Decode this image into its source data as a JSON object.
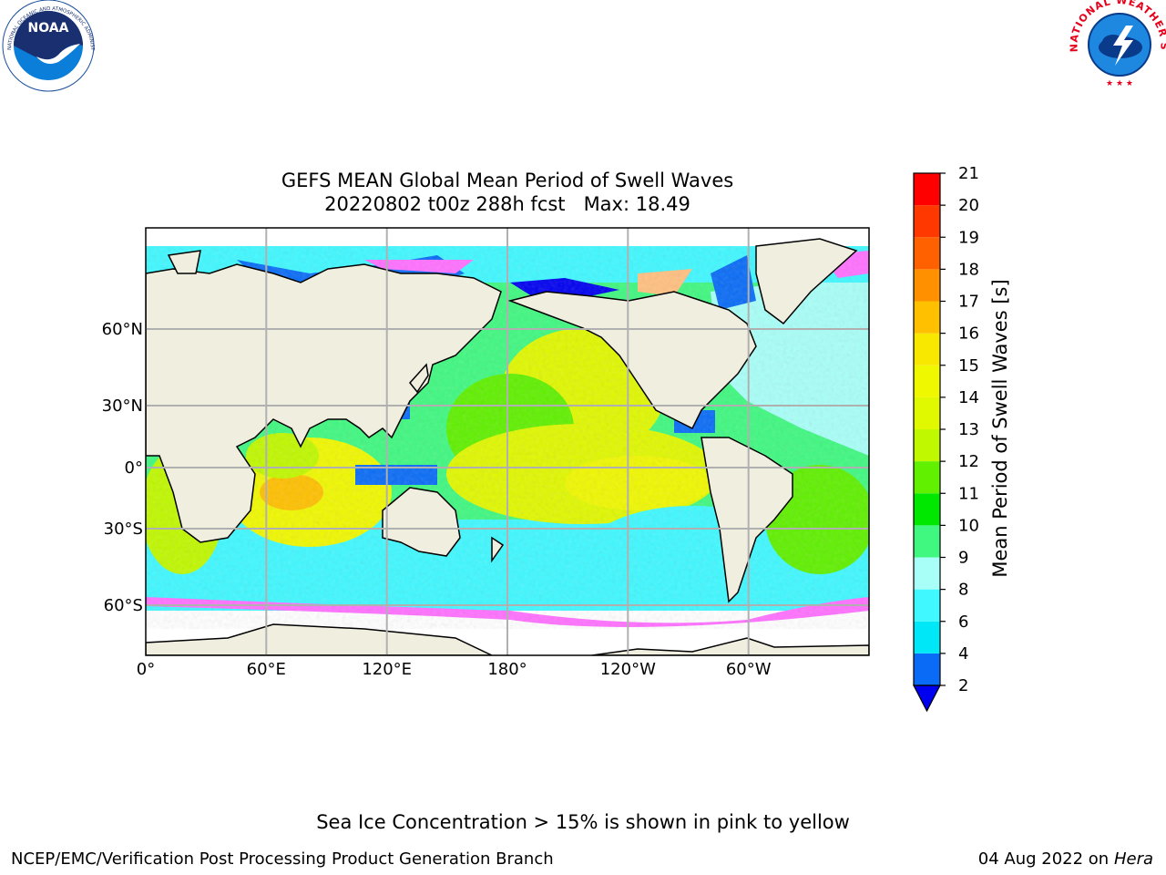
{
  "title": {
    "line1": "GEFS MEAN Global Mean Period of Swell Waves",
    "line2": "20220802 t00z 288h fcst   Max: 18.49"
  },
  "map": {
    "lon_ticks": [
      "0°",
      "60°E",
      "120°E",
      "180°",
      "120°W",
      "60°W"
    ],
    "lat_ticks": [
      "60°N",
      "30°N",
      "0°",
      "30°S",
      "60°S"
    ]
  },
  "colorbar": {
    "label": "Mean Period of Swell Waves [s]",
    "ticks": [
      "2",
      "4",
      "6",
      "8",
      "9",
      "10",
      "11",
      "12",
      "13",
      "14",
      "15",
      "16",
      "17",
      "18",
      "19",
      "20",
      "21"
    ],
    "colors": [
      "#0a6cf6",
      "#00e8f8",
      "#40f8ff",
      "#a8fff8",
      "#40f880",
      "#00e800",
      "#60f000",
      "#c0f800",
      "#e0f800",
      "#f0f800",
      "#f8e800",
      "#ffc000",
      "#ff9000",
      "#ff6000",
      "#ff3800",
      "#ff0000"
    ],
    "under_color": "#0000f0"
  },
  "logos": {
    "noaa_text": "NOAA",
    "noaa_ring": "NATIONAL OCEANIC AND ATMOSPHERIC ADMINISTRATION · U.S. DEPARTMENT OF COMMERCE",
    "nws_ring": "NATIONAL WEATHER SERVICE"
  },
  "footer": {
    "ice_note": "Sea Ice Concentration > 15% is shown in pink to yellow",
    "credit": "NCEP/EMC/Verification Post Processing Product Generation Branch",
    "date": "04 Aug 2022 on",
    "machine": "Hera"
  }
}
